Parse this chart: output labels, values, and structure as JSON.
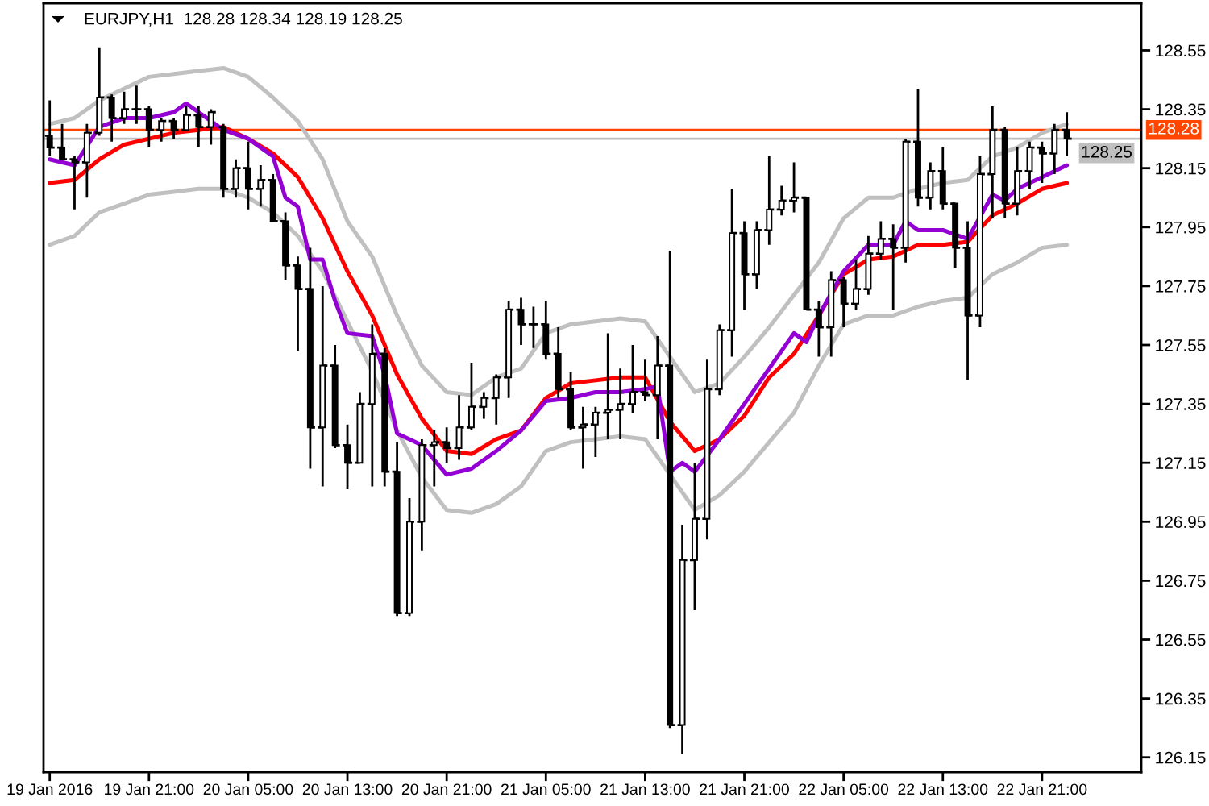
{
  "chart_data": {
    "type": "candlestick",
    "title": "EURJPY,H1  128.28 128.34 128.19 128.25",
    "color": "#000000",
    "x": [
      "2016-01-19T13:00",
      "2016-01-19T14:00",
      "2016-01-19T15:00",
      "2016-01-19T16:00",
      "2016-01-19T17:00",
      "2016-01-19T18:00",
      "2016-01-19T19:00",
      "2016-01-19T20:00",
      "2016-01-19T21:00",
      "2016-01-19T22:00",
      "2016-01-19T23:00",
      "2016-01-20T00:00",
      "2016-01-20T01:00",
      "2016-01-20T02:00",
      "2016-01-20T03:00",
      "2016-01-20T04:00",
      "2016-01-20T05:00",
      "2016-01-20T06:00",
      "2016-01-20T07:00",
      "2016-01-20T08:00",
      "2016-01-20T09:00",
      "2016-01-20T10:00",
      "2016-01-20T11:00",
      "2016-01-20T12:00",
      "2016-01-20T13:00",
      "2016-01-20T14:00",
      "2016-01-20T15:00",
      "2016-01-20T16:00",
      "2016-01-20T17:00",
      "2016-01-20T18:00",
      "2016-01-20T19:00",
      "2016-01-20T20:00",
      "2016-01-20T21:00",
      "2016-01-20T22:00",
      "2016-01-20T23:00",
      "2016-01-21T00:00",
      "2016-01-21T01:00",
      "2016-01-21T02:00",
      "2016-01-21T03:00",
      "2016-01-21T04:00",
      "2016-01-21T05:00",
      "2016-01-21T06:00",
      "2016-01-21T07:00",
      "2016-01-21T08:00",
      "2016-01-21T09:00",
      "2016-01-21T10:00",
      "2016-01-21T11:00",
      "2016-01-21T12:00",
      "2016-01-21T13:00",
      "2016-01-21T14:00",
      "2016-01-21T15:00",
      "2016-01-21T16:00",
      "2016-01-21T17:00",
      "2016-01-21T18:00",
      "2016-01-21T19:00",
      "2016-01-21T20:00",
      "2016-01-21T21:00",
      "2016-01-21T22:00",
      "2016-01-21T23:00",
      "2016-01-22T00:00",
      "2016-01-22T01:00",
      "2016-01-22T02:00",
      "2016-01-22T03:00",
      "2016-01-22T04:00",
      "2016-01-22T05:00",
      "2016-01-22T06:00",
      "2016-01-22T07:00",
      "2016-01-22T08:00",
      "2016-01-22T09:00",
      "2016-01-22T10:00",
      "2016-01-22T11:00",
      "2016-01-22T12:00",
      "2016-01-22T13:00",
      "2016-01-22T14:00",
      "2016-01-22T15:00",
      "2016-01-22T16:00",
      "2016-01-22T17:00",
      "2016-01-22T18:00",
      "2016-01-22T19:00",
      "2016-01-22T20:00",
      "2016-01-22T21:00",
      "2016-01-22T22:00",
      "2016-01-22T23:00"
    ],
    "ohlc": [
      [
        128.26,
        128.38,
        128.19,
        128.22
      ],
      [
        128.22,
        128.3,
        128.18,
        128.18
      ],
      [
        128.18,
        128.19,
        128.01,
        128.17
      ],
      [
        128.17,
        128.3,
        128.05,
        128.27
      ],
      [
        128.27,
        128.56,
        128.26,
        128.39
      ],
      [
        128.39,
        128.4,
        128.24,
        128.32
      ],
      [
        128.32,
        128.41,
        128.3,
        128.35
      ],
      [
        128.35,
        128.43,
        128.3,
        128.35
      ],
      [
        128.35,
        128.36,
        128.22,
        128.28
      ],
      [
        128.28,
        128.32,
        128.24,
        128.31
      ],
      [
        128.31,
        128.32,
        128.25,
        128.28
      ],
      [
        128.28,
        128.36,
        128.28,
        128.33
      ],
      [
        128.33,
        128.36,
        128.22,
        128.29
      ],
      [
        128.29,
        128.35,
        128.23,
        128.34
      ],
      [
        128.29,
        128.3,
        128.05,
        128.08
      ],
      [
        128.08,
        128.18,
        128.05,
        128.15
      ],
      [
        128.15,
        128.24,
        128.01,
        128.08
      ],
      [
        128.08,
        128.16,
        128.02,
        128.11
      ],
      [
        128.11,
        128.13,
        127.97,
        127.97
      ],
      [
        127.97,
        128.0,
        127.77,
        127.82
      ],
      [
        127.82,
        127.85,
        127.53,
        127.74
      ],
      [
        127.74,
        127.88,
        127.13,
        127.27
      ],
      [
        127.27,
        127.75,
        127.07,
        127.48
      ],
      [
        127.48,
        127.55,
        127.2,
        127.21
      ],
      [
        127.21,
        127.28,
        127.06,
        127.15
      ],
      [
        127.15,
        127.39,
        127.15,
        127.35
      ],
      [
        127.35,
        127.62,
        127.07,
        127.52
      ],
      [
        127.52,
        127.54,
        127.07,
        127.12
      ],
      [
        127.12,
        127.22,
        126.63,
        126.64
      ],
      [
        126.64,
        127.03,
        126.63,
        126.95
      ],
      [
        126.95,
        127.23,
        126.85,
        127.21
      ],
      [
        127.21,
        127.26,
        127.07,
        127.22
      ],
      [
        127.22,
        127.27,
        127.15,
        127.2
      ],
      [
        127.2,
        127.38,
        127.16,
        127.27
      ],
      [
        127.27,
        127.49,
        127.26,
        127.34
      ],
      [
        127.34,
        127.39,
        127.3,
        127.37
      ],
      [
        127.37,
        127.45,
        127.28,
        127.44
      ],
      [
        127.44,
        127.7,
        127.37,
        127.67
      ],
      [
        127.67,
        127.71,
        127.55,
        127.62
      ],
      [
        127.62,
        127.68,
        127.54,
        127.62
      ],
      [
        127.62,
        127.7,
        127.5,
        127.52
      ],
      [
        127.52,
        127.61,
        127.37,
        127.4
      ],
      [
        127.4,
        127.46,
        127.26,
        127.27
      ],
      [
        127.27,
        127.34,
        127.13,
        127.28
      ],
      [
        127.28,
        127.34,
        127.17,
        127.32
      ],
      [
        127.32,
        127.59,
        127.23,
        127.33
      ],
      [
        127.33,
        127.47,
        127.23,
        127.35
      ],
      [
        127.35,
        127.55,
        127.32,
        127.39
      ],
      [
        127.39,
        127.5,
        127.36,
        127.38
      ],
      [
        127.38,
        127.58,
        127.23,
        127.48
      ],
      [
        127.48,
        127.87,
        126.25,
        126.26
      ],
      [
        126.26,
        126.94,
        126.16,
        126.82
      ],
      [
        126.82,
        127.15,
        126.65,
        126.96
      ],
      [
        126.96,
        127.5,
        126.89,
        127.4
      ],
      [
        127.4,
        127.62,
        127.38,
        127.6
      ],
      [
        127.6,
        128.08,
        127.51,
        127.93
      ],
      [
        127.93,
        127.97,
        127.67,
        127.79
      ],
      [
        127.79,
        127.97,
        127.74,
        127.94
      ],
      [
        127.94,
        128.19,
        127.89,
        128.01
      ],
      [
        128.01,
        128.09,
        127.99,
        128.04
      ],
      [
        128.04,
        128.17,
        128.0,
        128.05
      ],
      [
        128.05,
        128.05,
        127.67,
        127.67
      ],
      [
        127.67,
        127.7,
        127.51,
        127.61
      ],
      [
        127.61,
        127.8,
        127.51,
        127.77
      ],
      [
        127.77,
        127.78,
        127.61,
        127.69
      ],
      [
        127.69,
        127.84,
        127.67,
        127.74
      ],
      [
        127.74,
        127.92,
        127.72,
        127.86
      ],
      [
        127.86,
        127.97,
        127.84,
        127.91
      ],
      [
        127.91,
        127.96,
        127.67,
        127.88
      ],
      [
        127.88,
        128.25,
        127.83,
        128.24
      ],
      [
        128.24,
        128.42,
        128.02,
        128.05
      ],
      [
        128.05,
        128.17,
        128.01,
        128.14
      ],
      [
        128.14,
        128.22,
        128.01,
        128.03
      ],
      [
        128.03,
        128.03,
        127.81,
        127.88
      ],
      [
        127.88,
        127.97,
        127.43,
        127.65
      ],
      [
        127.65,
        128.19,
        127.61,
        128.13
      ],
      [
        128.13,
        128.36,
        127.98,
        128.28
      ],
      [
        128.28,
        128.29,
        127.98,
        128.03
      ],
      [
        128.03,
        128.22,
        127.99,
        128.14
      ],
      [
        128.14,
        128.24,
        128.08,
        128.22
      ],
      [
        128.22,
        128.24,
        128.1,
        128.2
      ],
      [
        128.2,
        128.3,
        128.13,
        128.28
      ],
      [
        128.28,
        128.34,
        128.19,
        128.25
      ]
    ],
    "series": [
      {
        "type": "line",
        "color": "#c0c0c0",
        "x": [
          "2016-01-19T13:00",
          "2016-01-19T15:00",
          "2016-01-19T17:00",
          "2016-01-19T19:00",
          "2016-01-19T21:00",
          "2016-01-19T23:00",
          "2016-01-20T01:00",
          "2016-01-20T03:00",
          "2016-01-20T05:00",
          "2016-01-20T07:00",
          "2016-01-20T09:00",
          "2016-01-20T11:00",
          "2016-01-20T13:00",
          "2016-01-20T15:00",
          "2016-01-20T17:00",
          "2016-01-20T19:00",
          "2016-01-20T21:00",
          "2016-01-20T23:00",
          "2016-01-21T01:00",
          "2016-01-21T03:00",
          "2016-01-21T05:00",
          "2016-01-21T07:00",
          "2016-01-21T09:00",
          "2016-01-21T11:00",
          "2016-01-21T13:00",
          "2016-01-21T15:00",
          "2016-01-21T17:00",
          "2016-01-21T19:00",
          "2016-01-21T21:00",
          "2016-01-21T23:00",
          "2016-01-22T01:00",
          "2016-01-22T03:00",
          "2016-01-22T05:00",
          "2016-01-22T07:00",
          "2016-01-22T09:00",
          "2016-01-22T11:00",
          "2016-01-22T13:00",
          "2016-01-22T15:00",
          "2016-01-22T17:00",
          "2016-01-22T19:00",
          "2016-01-22T21:00",
          "2016-01-22T23:00"
        ],
        "values": [
          128.3,
          128.32,
          128.38,
          128.42,
          128.46,
          128.47,
          128.48,
          128.49,
          128.46,
          128.39,
          128.31,
          128.18,
          127.97,
          127.85,
          127.65,
          127.48,
          127.39,
          127.38,
          127.44,
          127.47,
          127.59,
          127.62,
          127.63,
          127.64,
          127.63,
          127.51,
          127.39,
          127.42,
          127.51,
          127.61,
          127.72,
          127.83,
          127.98,
          128.05,
          128.05,
          128.08,
          128.1,
          128.11,
          128.19,
          128.22,
          128.27,
          128.3
        ]
      },
      {
        "type": "line",
        "color": "#c0c0c0",
        "x": [
          "2016-01-19T13:00",
          "2016-01-19T15:00",
          "2016-01-19T17:00",
          "2016-01-19T19:00",
          "2016-01-19T21:00",
          "2016-01-19T23:00",
          "2016-01-20T01:00",
          "2016-01-20T03:00",
          "2016-01-20T05:00",
          "2016-01-20T07:00",
          "2016-01-20T09:00",
          "2016-01-20T11:00",
          "2016-01-20T13:00",
          "2016-01-20T15:00",
          "2016-01-20T17:00",
          "2016-01-20T19:00",
          "2016-01-20T21:00",
          "2016-01-20T23:00",
          "2016-01-21T01:00",
          "2016-01-21T03:00",
          "2016-01-21T05:00",
          "2016-01-21T07:00",
          "2016-01-21T09:00",
          "2016-01-21T11:00",
          "2016-01-21T13:00",
          "2016-01-21T15:00",
          "2016-01-21T17:00",
          "2016-01-21T19:00",
          "2016-01-21T21:00",
          "2016-01-21T23:00",
          "2016-01-22T01:00",
          "2016-01-22T03:00",
          "2016-01-22T05:00",
          "2016-01-22T07:00",
          "2016-01-22T09:00",
          "2016-01-22T11:00",
          "2016-01-22T13:00",
          "2016-01-22T15:00",
          "2016-01-22T17:00",
          "2016-01-22T19:00",
          "2016-01-22T21:00",
          "2016-01-22T23:00"
        ],
        "values": [
          127.89,
          127.92,
          128.0,
          128.03,
          128.06,
          128.07,
          128.08,
          128.08,
          128.05,
          128.0,
          127.92,
          127.8,
          127.63,
          127.46,
          127.26,
          127.1,
          126.99,
          126.98,
          127.01,
          127.07,
          127.19,
          127.22,
          127.23,
          127.24,
          127.23,
          127.11,
          126.99,
          127.04,
          127.12,
          127.22,
          127.32,
          127.48,
          127.62,
          127.65,
          127.65,
          127.68,
          127.7,
          127.71,
          127.79,
          127.83,
          127.88,
          127.89
        ]
      },
      {
        "type": "line",
        "color": "#ff0000",
        "x": [
          "2016-01-19T13:00",
          "2016-01-19T15:00",
          "2016-01-19T17:00",
          "2016-01-19T19:00",
          "2016-01-19T21:00",
          "2016-01-19T23:00",
          "2016-01-20T01:00",
          "2016-01-20T03:00",
          "2016-01-20T05:00",
          "2016-01-20T07:00",
          "2016-01-20T09:00",
          "2016-01-20T11:00",
          "2016-01-20T13:00",
          "2016-01-20T15:00",
          "2016-01-20T17:00",
          "2016-01-20T19:00",
          "2016-01-20T21:00",
          "2016-01-20T23:00",
          "2016-01-21T01:00",
          "2016-01-21T03:00",
          "2016-01-21T05:00",
          "2016-01-21T07:00",
          "2016-01-21T09:00",
          "2016-01-21T11:00",
          "2016-01-21T13:00",
          "2016-01-21T15:00",
          "2016-01-21T17:00",
          "2016-01-21T19:00",
          "2016-01-21T21:00",
          "2016-01-21T23:00",
          "2016-01-22T01:00",
          "2016-01-22T03:00",
          "2016-01-22T05:00",
          "2016-01-22T07:00",
          "2016-01-22T09:00",
          "2016-01-22T11:00",
          "2016-01-22T13:00",
          "2016-01-22T15:00",
          "2016-01-22T17:00",
          "2016-01-22T19:00",
          "2016-01-22T21:00",
          "2016-01-22T23:00"
        ],
        "values": [
          128.1,
          128.11,
          128.18,
          128.23,
          128.25,
          128.27,
          128.28,
          128.29,
          128.25,
          128.2,
          128.12,
          127.98,
          127.8,
          127.65,
          127.45,
          127.3,
          127.19,
          127.18,
          127.23,
          127.26,
          127.37,
          127.42,
          127.43,
          127.44,
          127.44,
          127.29,
          127.19,
          127.23,
          127.31,
          127.44,
          127.52,
          127.65,
          127.79,
          127.84,
          127.85,
          127.89,
          127.89,
          127.9,
          127.99,
          128.03,
          128.08,
          128.1
        ]
      },
      {
        "type": "line",
        "color": "#9400d3",
        "x": [
          "2016-01-19T13:00",
          "2016-01-19T15:00",
          "2016-01-19T17:00",
          "2016-01-19T19:00",
          "2016-01-19T21:00",
          "2016-01-19T23:00",
          "2016-01-20T00:00",
          "2016-01-20T01:00",
          "2016-01-20T03:00",
          "2016-01-20T05:00",
          "2016-01-20T07:00",
          "2016-01-20T08:00",
          "2016-01-20T09:00",
          "2016-01-20T10:00",
          "2016-01-20T11:00",
          "2016-01-20T12:00",
          "2016-01-20T13:00",
          "2016-01-20T15:00",
          "2016-01-20T16:00",
          "2016-01-20T17:00",
          "2016-01-20T19:00",
          "2016-01-20T21:00",
          "2016-01-20T23:00",
          "2016-01-21T01:00",
          "2016-01-21T03:00",
          "2016-01-21T05:00",
          "2016-01-21T07:00",
          "2016-01-21T09:00",
          "2016-01-21T11:00",
          "2016-01-21T13:00",
          "2016-01-21T14:00",
          "2016-01-21T15:00",
          "2016-01-21T16:00",
          "2016-01-21T17:00",
          "2016-01-21T19:00",
          "2016-01-21T21:00",
          "2016-01-21T23:00",
          "2016-01-22T01:00",
          "2016-01-22T02:00",
          "2016-01-22T03:00",
          "2016-01-22T05:00",
          "2016-01-22T07:00",
          "2016-01-22T09:00",
          "2016-01-22T10:00",
          "2016-01-22T11:00",
          "2016-01-22T13:00",
          "2016-01-22T15:00",
          "2016-01-22T17:00",
          "2016-01-22T18:00",
          "2016-01-22T19:00",
          "2016-01-22T21:00",
          "2016-01-22T23:00"
        ],
        "values": [
          128.18,
          128.16,
          128.29,
          128.32,
          128.32,
          128.34,
          128.37,
          128.34,
          128.28,
          128.25,
          128.19,
          128.05,
          128.02,
          127.84,
          127.84,
          127.7,
          127.59,
          127.58,
          127.45,
          127.25,
          127.21,
          127.11,
          127.13,
          127.19,
          127.26,
          127.36,
          127.37,
          127.39,
          127.39,
          127.4,
          127.41,
          127.12,
          127.15,
          127.12,
          127.23,
          127.35,
          127.47,
          127.59,
          127.56,
          127.65,
          127.8,
          127.89,
          127.89,
          127.97,
          127.94,
          127.94,
          127.91,
          128.06,
          128.04,
          128.08,
          128.12,
          128.16
        ]
      }
    ],
    "ref_lines": [
      {
        "axis": "y",
        "value": 128.28,
        "label": "128.28",
        "color": "#ff4500"
      },
      {
        "axis": "y",
        "value": 128.25,
        "label": "128.25",
        "color": "#c0c0c0"
      }
    ],
    "xlim": [
      "2016-01-19T12:30",
      "2016-01-23T05:00"
    ],
    "ylim": [
      126.1,
      128.71
    ],
    "xticks": [
      {
        "value": "2016-01-19T13:00",
        "label": "19 Jan 2016"
      },
      {
        "value": "2016-01-19T21:00",
        "label": "19 Jan 21:00"
      },
      {
        "value": "2016-01-20T05:00",
        "label": "20 Jan 05:00"
      },
      {
        "value": "2016-01-20T13:00",
        "label": "20 Jan 13:00"
      },
      {
        "value": "2016-01-20T21:00",
        "label": "20 Jan 21:00"
      },
      {
        "value": "2016-01-21T05:00",
        "label": "21 Jan 05:00"
      },
      {
        "value": "2016-01-21T13:00",
        "label": "21 Jan 13:00"
      },
      {
        "value": "2016-01-21T21:00",
        "label": "21 Jan 21:00"
      },
      {
        "value": "2016-01-22T05:00",
        "label": "22 Jan 05:00"
      },
      {
        "value": "2016-01-22T13:00",
        "label": "22 Jan 13:00"
      },
      {
        "value": "2016-01-22T21:00",
        "label": "22 Jan 21:00"
      }
    ],
    "yticks": [
      126.15,
      126.35,
      126.55,
      126.75,
      126.95,
      127.15,
      127.35,
      127.55,
      127.75,
      127.95,
      128.15,
      128.35,
      128.55
    ]
  }
}
